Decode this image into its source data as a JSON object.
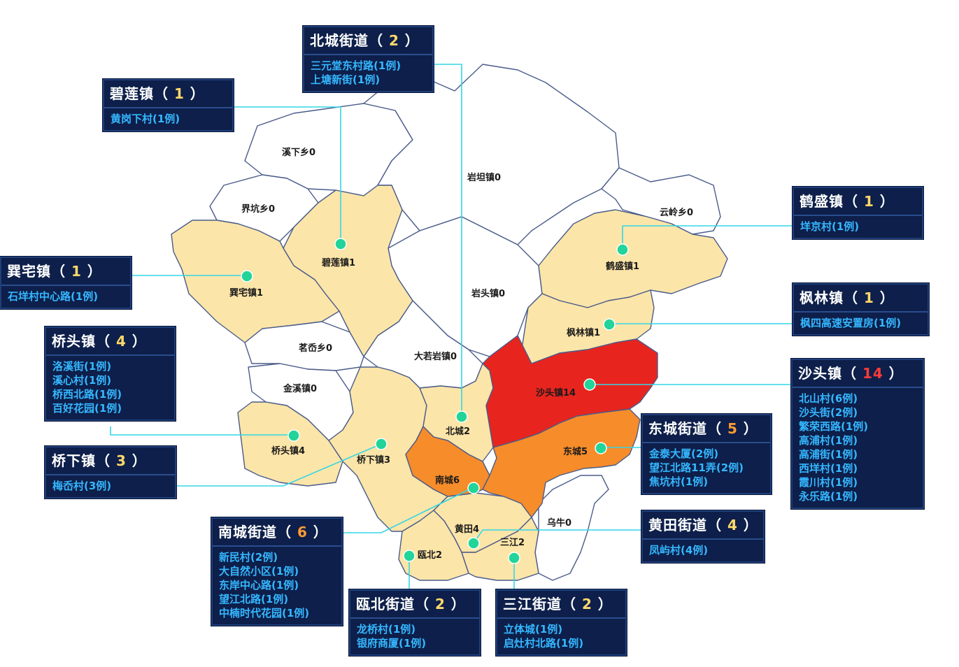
{
  "map_labels": {
    "xixia": "溪下乡0",
    "jiekeng": "界坑乡0",
    "yantan": "岩坦镇0",
    "yunling": "云岭乡0",
    "yantou": "岩头镇0",
    "hesheng": "鹤盛镇1",
    "bilian": "碧莲镇1",
    "xunzhai": "巽宅镇1",
    "fenglin": "枫林镇1",
    "mingxi": "茗岙乡0",
    "daruoyan": "大若岩镇0",
    "jinxi": "金溪镇0",
    "shatou": "沙头镇14",
    "beicheng": "北城2",
    "dongcheng": "东城5",
    "qiaotou": "桥头镇4",
    "qiaoxia": "桥下镇3",
    "nancheng": "南城6",
    "huangtian": "黄田4",
    "wuniu": "乌牛0",
    "sanjiang": "三江2",
    "oubei": "瓯北2"
  },
  "cards": {
    "beicheng": {
      "name": "北城街道",
      "count": "2",
      "items": [
        "三元堂东村路(1例)",
        "上塘新街(1例)"
      ]
    },
    "bilian": {
      "name": "碧莲镇",
      "count": "1",
      "items": [
        "黄岗下村(1例)"
      ]
    },
    "hesheng": {
      "name": "鹤盛镇",
      "count": "1",
      "items": [
        "垟京村(1例)"
      ]
    },
    "xunzhai": {
      "name": "巽宅镇",
      "count": "1",
      "items": [
        "石垟村中心路(1例)"
      ]
    },
    "fenglin": {
      "name": "枫林镇",
      "count": "1",
      "items": [
        "枫四高速安置房(1例)"
      ]
    },
    "qiaotou": {
      "name": "桥头镇",
      "count": "4",
      "items": [
        "洛溪街(1例)",
        "溪心村(1例)",
        "桥西北路(1例)",
        "百好花园(1例)"
      ]
    },
    "shatou": {
      "name": "沙头镇",
      "count": "14",
      "items": [
        "北山村(6例)",
        "沙头街(2例)",
        "繁荣西路(1例)",
        "高浦村(1例)",
        "高浦街(1例)",
        "西垟村(1例)",
        "霞川村(1例)",
        "永乐路(1例)"
      ]
    },
    "dongcheng": {
      "name": "东城街道",
      "count": "5",
      "items": [
        "金泰大厦(2例)",
        "望江北路11弄(2例)",
        "焦坑村(1例)"
      ]
    },
    "qiaoxia": {
      "name": "桥下镇",
      "count": "3",
      "items": [
        "梅岙村(3例)"
      ]
    },
    "huangtian": {
      "name": "黄田街道",
      "count": "4",
      "items": [
        "凤屿村(4例)"
      ]
    },
    "nancheng": {
      "name": "南城街道",
      "count": "6",
      "items": [
        "新民村(2例)",
        "大自然小区(1例)",
        "东岸中心路(1例)",
        "望江北路(1例)",
        "中楠时代花园(1例)"
      ]
    },
    "oubei": {
      "name": "瓯北街道",
      "count": "2",
      "items": [
        "龙桥村(1例)",
        "银府商厦(1例)"
      ]
    },
    "sanjiang": {
      "name": "三江街道",
      "count": "2",
      "items": [
        "立体城(1例)",
        "启灶村北路(1例)"
      ]
    }
  },
  "colors": {
    "zero": "#ffffff",
    "low": "#fce5a8",
    "mid": "#f68c2a",
    "high": "#e8241f",
    "card_bg": "#0d1f4a",
    "card_text": "#35b7ff",
    "leader": "#33d6e6"
  }
}
